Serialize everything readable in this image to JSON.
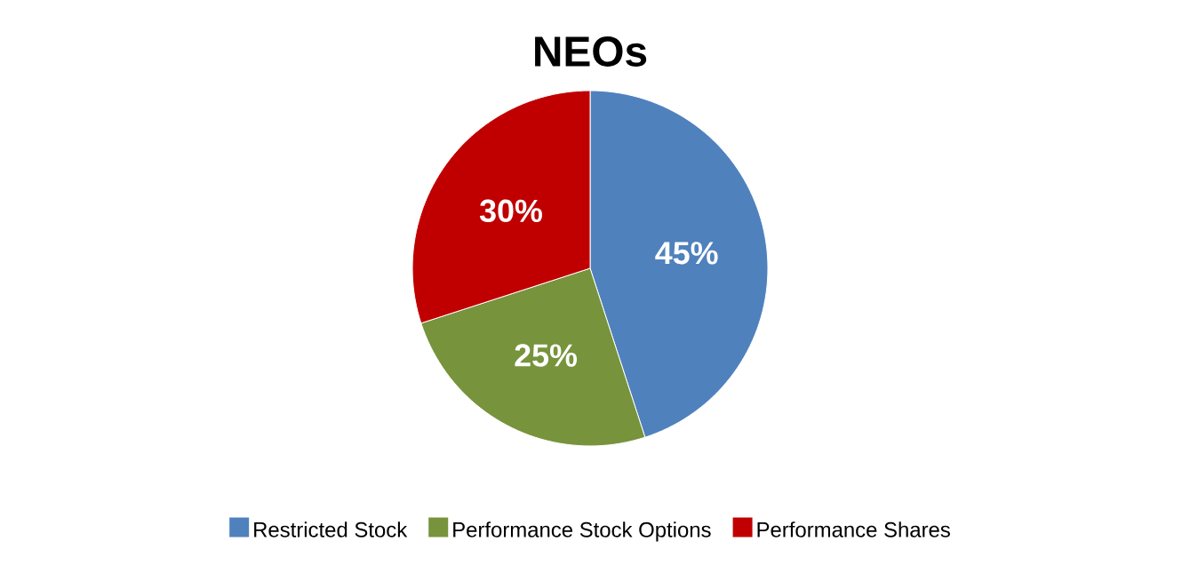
{
  "chart_data": {
    "type": "pie",
    "title": "NEOs",
    "categories": [
      "Restricted Stock",
      "Performance Stock Options",
      "Performance Shares"
    ],
    "values": [
      45,
      25,
      30
    ],
    "value_labels": [
      "45%",
      "25%",
      "30%"
    ],
    "colors": [
      "#4f81bd",
      "#77933c",
      "#c00000"
    ],
    "legend": "bottom"
  }
}
